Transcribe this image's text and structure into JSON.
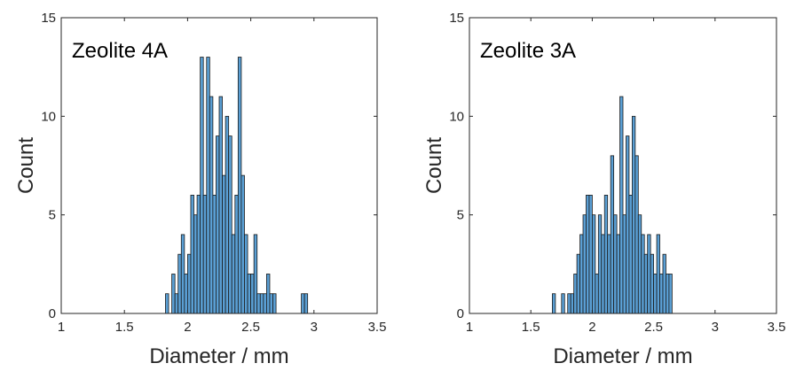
{
  "colors": {
    "bar_fill": "#5a9fd4",
    "bar_edge": "#1a1a1a",
    "axis": "#262626",
    "background": "#ffffff"
  },
  "chart_data": [
    {
      "type": "bar",
      "title": "Zeolite 4A",
      "xlabel": "Diameter / mm",
      "ylabel": "Count",
      "xlim": [
        1,
        3.5
      ],
      "ylim": [
        0,
        15
      ],
      "xticks": [
        "1",
        "1.5",
        "2",
        "2.5",
        "3",
        "3.5"
      ],
      "yticks": [
        "0",
        "5",
        "10",
        "15"
      ],
      "grid": false,
      "bin_width": 0.025,
      "bins": [
        {
          "x": 1.8375,
          "count": 1
        },
        {
          "x": 1.8875,
          "count": 2
        },
        {
          "x": 1.9125,
          "count": 1
        },
        {
          "x": 1.9375,
          "count": 3
        },
        {
          "x": 1.9625,
          "count": 4
        },
        {
          "x": 1.9875,
          "count": 2
        },
        {
          "x": 2.0125,
          "count": 3
        },
        {
          "x": 2.0375,
          "count": 6
        },
        {
          "x": 2.0625,
          "count": 5
        },
        {
          "x": 2.0875,
          "count": 6
        },
        {
          "x": 2.1125,
          "count": 13
        },
        {
          "x": 2.1375,
          "count": 6
        },
        {
          "x": 2.1625,
          "count": 13
        },
        {
          "x": 2.1875,
          "count": 11
        },
        {
          "x": 2.2125,
          "count": 6
        },
        {
          "x": 2.2375,
          "count": 9
        },
        {
          "x": 2.2625,
          "count": 11
        },
        {
          "x": 2.2875,
          "count": 7
        },
        {
          "x": 2.3125,
          "count": 10
        },
        {
          "x": 2.3375,
          "count": 9
        },
        {
          "x": 2.3625,
          "count": 4
        },
        {
          "x": 2.3875,
          "count": 6
        },
        {
          "x": 2.4125,
          "count": 13
        },
        {
          "x": 2.4375,
          "count": 7
        },
        {
          "x": 2.4625,
          "count": 4
        },
        {
          "x": 2.4875,
          "count": 2
        },
        {
          "x": 2.5125,
          "count": 2
        },
        {
          "x": 2.5375,
          "count": 4
        },
        {
          "x": 2.5625,
          "count": 1
        },
        {
          "x": 2.5875,
          "count": 1
        },
        {
          "x": 2.6125,
          "count": 1
        },
        {
          "x": 2.6375,
          "count": 2
        },
        {
          "x": 2.6625,
          "count": 1
        },
        {
          "x": 2.6875,
          "count": 1
        },
        {
          "x": 2.9125,
          "count": 1
        },
        {
          "x": 2.9375,
          "count": 1
        }
      ]
    },
    {
      "type": "bar",
      "title": "Zeolite 3A",
      "xlabel": "Diameter / mm",
      "ylabel": "Count",
      "xlim": [
        1,
        3.5
      ],
      "ylim": [
        0,
        15
      ],
      "xticks": [
        "1",
        "1.5",
        "2",
        "2.5",
        "3",
        "3.5"
      ],
      "yticks": [
        "0",
        "5",
        "10",
        "15"
      ],
      "grid": false,
      "bin_width": 0.025,
      "bins": [
        {
          "x": 1.6875,
          "count": 1
        },
        {
          "x": 1.7625,
          "count": 1
        },
        {
          "x": 1.8125,
          "count": 1
        },
        {
          "x": 1.8375,
          "count": 1
        },
        {
          "x": 1.8625,
          "count": 2
        },
        {
          "x": 1.8875,
          "count": 3
        },
        {
          "x": 1.9125,
          "count": 4
        },
        {
          "x": 1.9375,
          "count": 5
        },
        {
          "x": 1.9625,
          "count": 6
        },
        {
          "x": 1.9875,
          "count": 6
        },
        {
          "x": 2.0125,
          "count": 5
        },
        {
          "x": 2.0375,
          "count": 2
        },
        {
          "x": 2.0625,
          "count": 5
        },
        {
          "x": 2.0875,
          "count": 4
        },
        {
          "x": 2.1125,
          "count": 6
        },
        {
          "x": 2.1375,
          "count": 4
        },
        {
          "x": 2.1625,
          "count": 8
        },
        {
          "x": 2.1875,
          "count": 5
        },
        {
          "x": 2.2125,
          "count": 4
        },
        {
          "x": 2.2375,
          "count": 11
        },
        {
          "x": 2.2625,
          "count": 5
        },
        {
          "x": 2.2875,
          "count": 9
        },
        {
          "x": 2.3125,
          "count": 6
        },
        {
          "x": 2.3375,
          "count": 10
        },
        {
          "x": 2.3625,
          "count": 8
        },
        {
          "x": 2.3875,
          "count": 5
        },
        {
          "x": 2.4125,
          "count": 4
        },
        {
          "x": 2.4375,
          "count": 3
        },
        {
          "x": 2.4625,
          "count": 4
        },
        {
          "x": 2.4875,
          "count": 3
        },
        {
          "x": 2.5125,
          "count": 2
        },
        {
          "x": 2.5375,
          "count": 4
        },
        {
          "x": 2.5625,
          "count": 2
        },
        {
          "x": 2.5875,
          "count": 3
        },
        {
          "x": 2.6125,
          "count": 2
        },
        {
          "x": 2.6375,
          "count": 2
        }
      ]
    }
  ]
}
